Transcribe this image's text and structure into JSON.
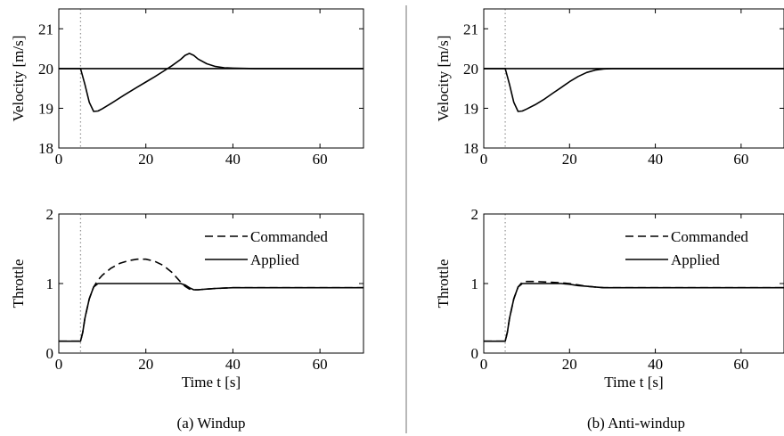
{
  "figure": {
    "panels": [
      {
        "caption": "(a) Windup"
      },
      {
        "caption": "(b) Anti-windup"
      }
    ]
  },
  "chart_data": [
    {
      "panel": "(a) Windup",
      "type": "line",
      "xlabel": "",
      "ylabel": "Velocity [m/s]",
      "xlim": [
        0,
        70
      ],
      "ylim": [
        18,
        21.5
      ],
      "xticks": [
        0,
        20,
        40,
        60
      ],
      "yticks": [
        18,
        19,
        20,
        21
      ],
      "vline_x": 5,
      "series": [
        {
          "role": "reference",
          "x": [
            0,
            70
          ],
          "y": [
            20,
            20
          ]
        },
        {
          "role": "response",
          "x": [
            0,
            5,
            6,
            7,
            8,
            9,
            10,
            12,
            15,
            18,
            20,
            22,
            24,
            26,
            28,
            29,
            30,
            31,
            32,
            34,
            36,
            38,
            40,
            45,
            50,
            60,
            70
          ],
          "y": [
            20,
            20,
            19.6,
            19.15,
            18.92,
            18.93,
            18.99,
            19.12,
            19.33,
            19.53,
            19.66,
            19.79,
            19.93,
            20.07,
            20.23,
            20.33,
            20.38,
            20.33,
            20.24,
            20.12,
            20.05,
            20.02,
            20.01,
            20.0,
            20.0,
            20.0,
            20.0
          ]
        }
      ]
    },
    {
      "panel": "(a) Windup",
      "type": "line",
      "xlabel": "Time t [s]",
      "ylabel": "Throttle",
      "xlim": [
        0,
        70
      ],
      "ylim": [
        0,
        2
      ],
      "xticks": [
        0,
        20,
        40,
        60
      ],
      "yticks": [
        0,
        1,
        2
      ],
      "vline_x": 5,
      "series": [
        {
          "name": "Commanded",
          "style": "dashed",
          "x": [
            0,
            5,
            5.5,
            6,
            7,
            8,
            9,
            10,
            12,
            14,
            16,
            18,
            19,
            20,
            22,
            24,
            26,
            28,
            29,
            30,
            31,
            32,
            34,
            36,
            40,
            45,
            50,
            60,
            70
          ],
          "y": [
            0.17,
            0.17,
            0.3,
            0.5,
            0.78,
            0.95,
            1.05,
            1.12,
            1.22,
            1.29,
            1.33,
            1.35,
            1.35,
            1.35,
            1.32,
            1.26,
            1.16,
            1.02,
            0.96,
            0.92,
            0.91,
            0.91,
            0.92,
            0.93,
            0.94,
            0.94,
            0.94,
            0.94,
            0.94
          ]
        },
        {
          "name": "Applied",
          "style": "solid",
          "x": [
            0,
            5,
            5.5,
            6,
            7,
            8,
            9,
            10,
            12,
            15,
            20,
            25,
            28,
            29,
            30,
            31,
            32,
            34,
            36,
            40,
            45,
            50,
            60,
            70
          ],
          "y": [
            0.17,
            0.17,
            0.3,
            0.5,
            0.78,
            0.95,
            1.0,
            1.0,
            1.0,
            1.0,
            1.0,
            1.0,
            1.0,
            0.98,
            0.94,
            0.91,
            0.91,
            0.92,
            0.93,
            0.94,
            0.94,
            0.94,
            0.94,
            0.94
          ]
        }
      ],
      "legend": "top-right"
    },
    {
      "panel": "(b) Anti-windup",
      "type": "line",
      "xlabel": "",
      "ylabel": "Velocity [m/s]",
      "xlim": [
        0,
        70
      ],
      "ylim": [
        18,
        21.5
      ],
      "xticks": [
        0,
        20,
        40,
        60
      ],
      "yticks": [
        18,
        19,
        20,
        21
      ],
      "vline_x": 5,
      "series": [
        {
          "role": "reference",
          "x": [
            0,
            70
          ],
          "y": [
            20,
            20
          ]
        },
        {
          "role": "response",
          "x": [
            0,
            5,
            6,
            7,
            8,
            9,
            10,
            12,
            14,
            16,
            18,
            20,
            22,
            24,
            26,
            28,
            30,
            35,
            40,
            50,
            60,
            70
          ],
          "y": [
            20,
            20,
            19.6,
            19.15,
            18.92,
            18.93,
            18.98,
            19.09,
            19.22,
            19.37,
            19.52,
            19.67,
            19.8,
            19.9,
            19.96,
            19.99,
            20.0,
            20.0,
            20.0,
            20.0,
            20.0,
            20.0
          ]
        }
      ]
    },
    {
      "panel": "(b) Anti-windup",
      "type": "line",
      "xlabel": "Time t [s]",
      "ylabel": "Throttle",
      "xlim": [
        0,
        70
      ],
      "ylim": [
        0,
        2
      ],
      "xticks": [
        0,
        20,
        40,
        60
      ],
      "yticks": [
        0,
        1,
        2
      ],
      "vline_x": 5,
      "series": [
        {
          "name": "Commanded",
          "style": "dashed",
          "x": [
            0,
            5,
            5.5,
            6,
            7,
            8,
            9,
            10,
            12,
            15,
            18,
            20,
            22,
            24,
            26,
            28,
            30,
            35,
            40,
            50,
            60,
            70
          ],
          "y": [
            0.17,
            0.17,
            0.3,
            0.5,
            0.78,
            0.95,
            1.02,
            1.03,
            1.03,
            1.02,
            1.01,
            1.0,
            0.98,
            0.96,
            0.95,
            0.94,
            0.94,
            0.94,
            0.94,
            0.94,
            0.94,
            0.94
          ]
        },
        {
          "name": "Applied",
          "style": "solid",
          "x": [
            0,
            5,
            5.5,
            6,
            7,
            8,
            9,
            10,
            12,
            15,
            18,
            20,
            22,
            24,
            26,
            28,
            30,
            35,
            40,
            50,
            60,
            70
          ],
          "y": [
            0.17,
            0.17,
            0.3,
            0.5,
            0.78,
            0.95,
            1.0,
            1.0,
            1.0,
            1.0,
            1.0,
            0.99,
            0.97,
            0.96,
            0.95,
            0.94,
            0.94,
            0.94,
            0.94,
            0.94,
            0.94,
            0.94
          ]
        }
      ],
      "legend": "top-right"
    }
  ]
}
